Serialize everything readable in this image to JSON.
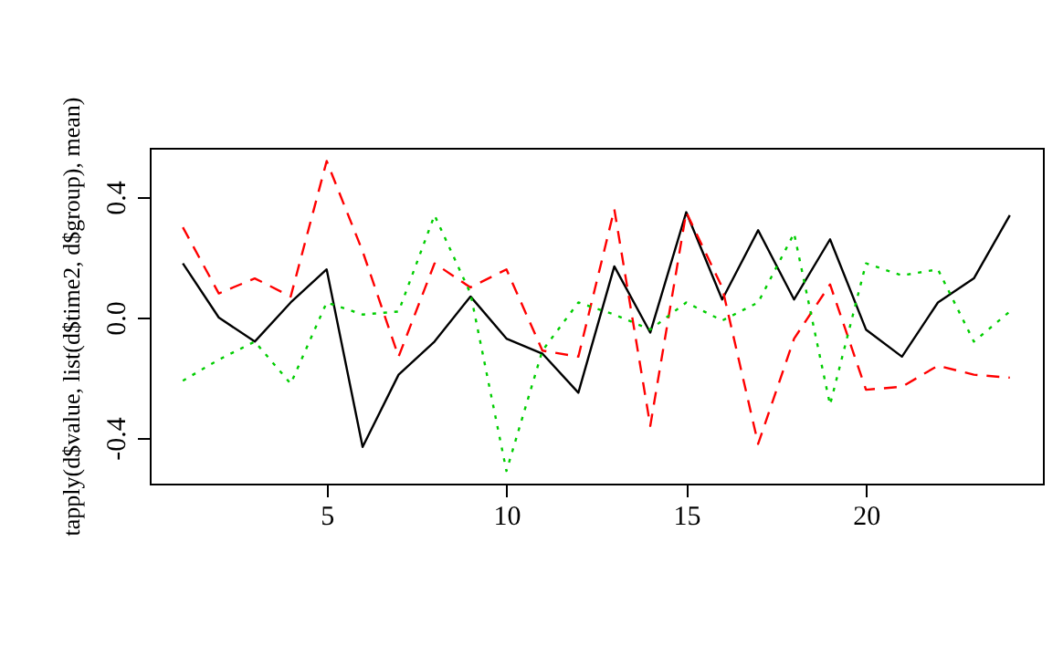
{
  "chart_data": {
    "type": "line",
    "ylabel": "tapply(d$value, list(d$time2, d$group), mean)",
    "x": [
      1,
      2,
      3,
      4,
      5,
      6,
      7,
      8,
      9,
      10,
      11,
      12,
      13,
      14,
      15,
      16,
      17,
      18,
      19,
      20,
      21,
      22,
      23,
      24
    ],
    "series": [
      {
        "color": "#000000",
        "line_style": "solid",
        "values": [
          0.18,
          0.0,
          -0.08,
          0.05,
          0.16,
          -0.43,
          -0.19,
          -0.08,
          0.07,
          -0.07,
          -0.12,
          -0.25,
          0.17,
          -0.05,
          0.35,
          0.06,
          0.29,
          0.06,
          0.26,
          -0.04,
          -0.13,
          0.05,
          0.13,
          0.34
        ]
      },
      {
        "color": "#ff0000",
        "line_style": "dashed",
        "values": [
          0.3,
          0.08,
          0.13,
          0.07,
          0.52,
          0.22,
          -0.13,
          0.18,
          0.1,
          0.16,
          -0.11,
          -0.13,
          0.36,
          -0.36,
          0.35,
          0.1,
          -0.42,
          -0.07,
          0.11,
          -0.24,
          -0.23,
          -0.16,
          -0.19,
          -0.2
        ]
      },
      {
        "color": "#00cd00",
        "line_style": "dotted",
        "values": [
          -0.21,
          -0.14,
          -0.08,
          -0.22,
          0.05,
          0.01,
          0.02,
          0.34,
          0.08,
          -0.51,
          -0.11,
          0.05,
          0.01,
          -0.04,
          0.05,
          -0.01,
          0.05,
          0.28,
          -0.29,
          0.18,
          0.14,
          0.16,
          -0.08,
          0.02
        ]
      }
    ],
    "xlim": [
      0.08,
      24.92
    ],
    "ylim": [
      -0.552,
      0.564
    ],
    "xticks": [
      5,
      10,
      15,
      20
    ],
    "yticks": [
      {
        "value": -0.4,
        "label": "-0.4"
      },
      {
        "value": 0,
        "label": "0.0"
      },
      {
        "value": 0.4,
        "label": "0.4"
      }
    ],
    "grid": false,
    "marker": "none"
  }
}
